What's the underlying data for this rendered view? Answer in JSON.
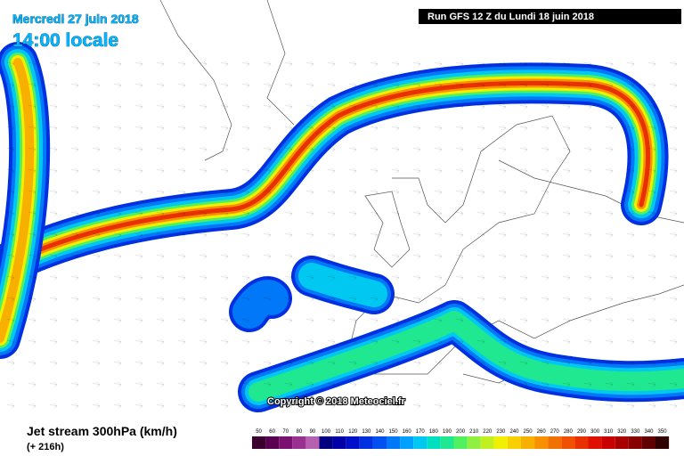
{
  "header": {
    "date": "Mercredi 27 juin 2018",
    "time": "14:00 locale",
    "run": "Run GFS 12 Z du Lundi 18 juin 2018"
  },
  "copyright": "Copyright © 2018 Meteociel.fr",
  "legend": {
    "title": "Jet stream 300hPa (km/h)",
    "lead": "(+ 216h)",
    "scale": [
      {
        "value": 50,
        "color": "#3c0030"
      },
      {
        "value": 60,
        "color": "#5a0050"
      },
      {
        "value": 70,
        "color": "#7a1070"
      },
      {
        "value": 80,
        "color": "#9a3090"
      },
      {
        "value": 90,
        "color": "#b860b0"
      },
      {
        "value": 100,
        "color": "#000080"
      },
      {
        "value": 110,
        "color": "#0000a8"
      },
      {
        "value": 120,
        "color": "#0010c8"
      },
      {
        "value": 130,
        "color": "#0030e0"
      },
      {
        "value": 140,
        "color": "#0050f0"
      },
      {
        "value": 150,
        "color": "#0078f8"
      },
      {
        "value": 160,
        "color": "#00a0ff"
      },
      {
        "value": 170,
        "color": "#00c8f0"
      },
      {
        "value": 180,
        "color": "#00e0c0"
      },
      {
        "value": 190,
        "color": "#20e890"
      },
      {
        "value": 200,
        "color": "#50f060"
      },
      {
        "value": 210,
        "color": "#90f040"
      },
      {
        "value": 220,
        "color": "#c0f020"
      },
      {
        "value": 230,
        "color": "#f0f000"
      },
      {
        "value": 240,
        "color": "#f8d000"
      },
      {
        "value": 250,
        "color": "#f8b000"
      },
      {
        "value": 260,
        "color": "#f89000"
      },
      {
        "value": 270,
        "color": "#f07000"
      },
      {
        "value": 280,
        "color": "#f05000"
      },
      {
        "value": 290,
        "color": "#e83000"
      },
      {
        "value": 300,
        "color": "#e01000"
      },
      {
        "value": 310,
        "color": "#c80000"
      },
      {
        "value": 320,
        "color": "#a80000"
      },
      {
        "value": 330,
        "color": "#880000"
      },
      {
        "value": 340,
        "color": "#600000"
      },
      {
        "value": 350,
        "color": "#300000"
      }
    ]
  }
}
